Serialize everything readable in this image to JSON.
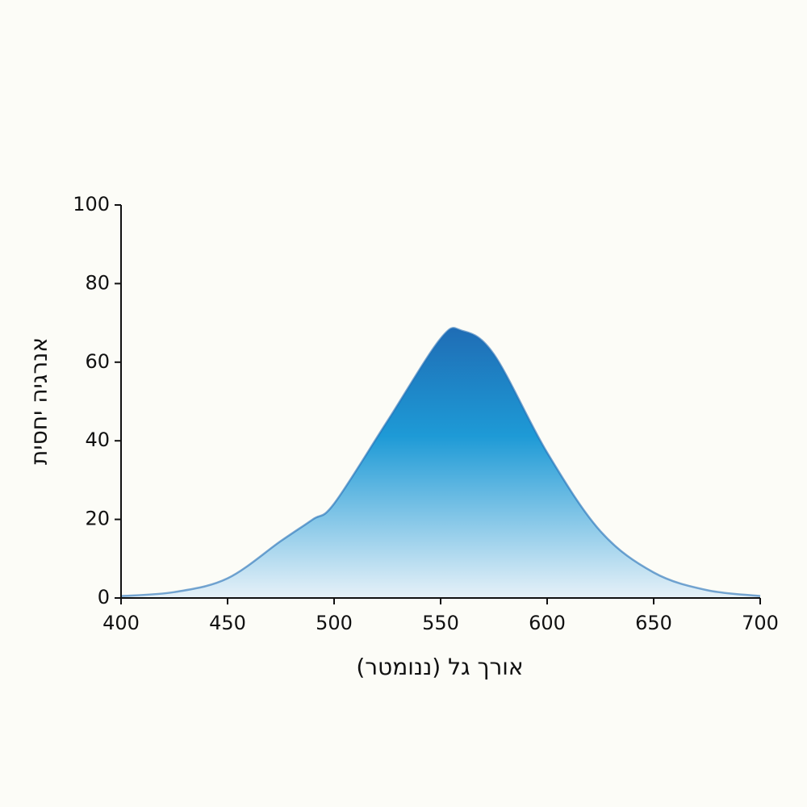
{
  "chart_data": {
    "type": "area",
    "x_label": "אורך גל (ננומטר)",
    "y_label": "אנרגיה יחסית",
    "x": [
      400,
      425,
      450,
      475,
      490,
      500,
      525,
      550,
      560,
      575,
      600,
      625,
      650,
      675,
      700
    ],
    "values": [
      0.5,
      1.5,
      5,
      14.5,
      20,
      24,
      45,
      66,
      68,
      62,
      37,
      17,
      6.5,
      2,
      0.5
    ],
    "color": "#1f6db5",
    "xlim": [
      400,
      700
    ],
    "xticks": [
      400,
      450,
      500,
      550,
      600,
      650,
      700
    ],
    "ylim": [
      0,
      100
    ],
    "yticks": [
      0,
      20,
      40,
      60,
      80,
      100
    ]
  }
}
